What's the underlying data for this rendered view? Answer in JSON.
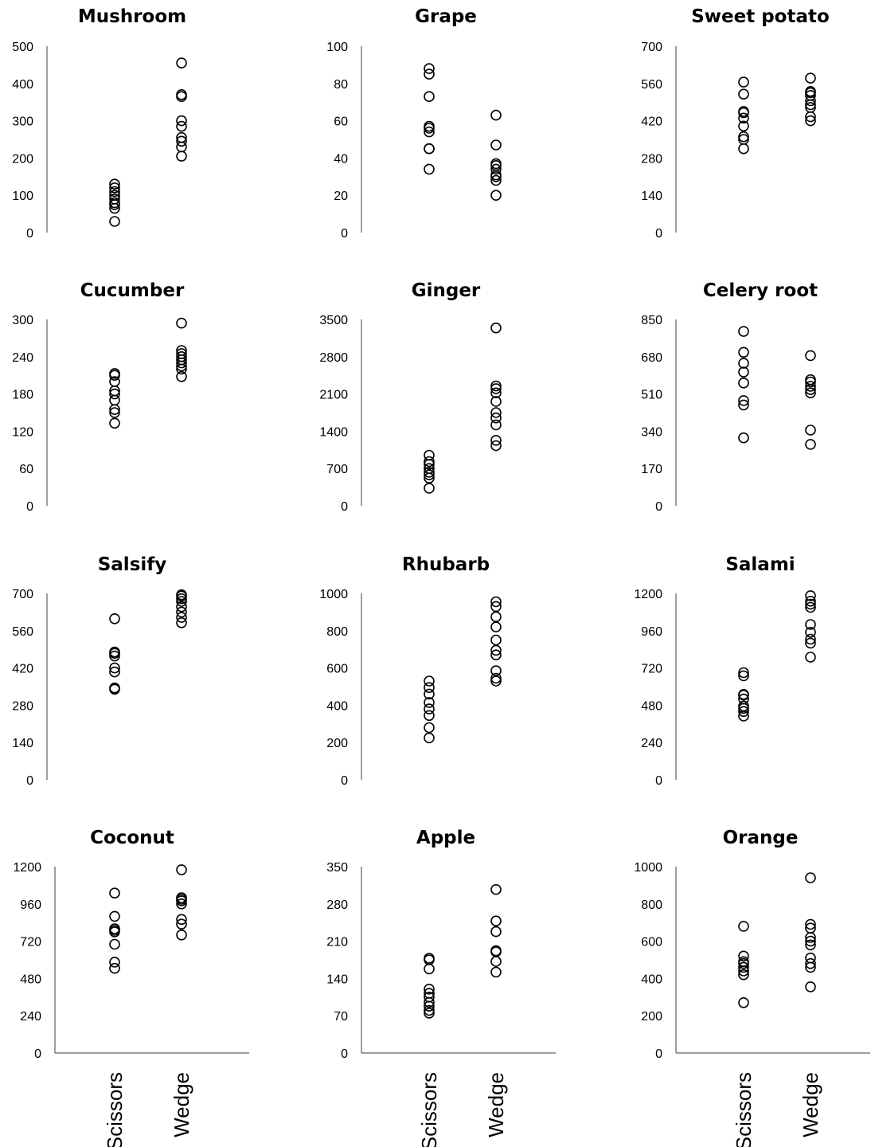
{
  "chart_data": [
    {
      "type": "scatter",
      "title": "Mushroom",
      "categories": [
        "Scissors",
        "Wedge"
      ],
      "yticks": [
        "0",
        "100",
        "200",
        "300",
        "400",
        "500"
      ],
      "ylim": [
        0,
        500
      ],
      "series": [
        {
          "category": "Scissors",
          "values": [
            30,
            65,
            75,
            80,
            90,
            100,
            110,
            120,
            130
          ]
        },
        {
          "category": "Wedge",
          "values": [
            205,
            230,
            245,
            255,
            285,
            300,
            365,
            370,
            455
          ]
        }
      ]
    },
    {
      "type": "scatter",
      "title": "Grape",
      "categories": [
        "Scissors",
        "Wedge"
      ],
      "yticks": [
        "0",
        "20",
        "40",
        "60",
        "80",
        "100"
      ],
      "ylim": [
        0,
        100
      ],
      "series": [
        {
          "category": "Scissors",
          "values": [
            34,
            45,
            45,
            54,
            56,
            57,
            73,
            85,
            88
          ]
        },
        {
          "category": "Wedge",
          "values": [
            20,
            28,
            30,
            31,
            34,
            36,
            37,
            47,
            63
          ]
        }
      ]
    },
    {
      "type": "scatter",
      "title": "Sweet potato",
      "categories": [
        "Scissors",
        "Wedge"
      ],
      "yticks": [
        "0",
        "140",
        "280",
        "420",
        "560",
        "700"
      ],
      "ylim": [
        0,
        700
      ],
      "series": [
        {
          "category": "Scissors",
          "values": [
            315,
            350,
            360,
            400,
            430,
            450,
            455,
            520,
            565
          ]
        },
        {
          "category": "Wedge",
          "values": [
            420,
            435,
            470,
            480,
            495,
            515,
            525,
            530,
            580
          ]
        }
      ]
    },
    {
      "type": "scatter",
      "title": "Cucumber",
      "categories": [
        "Scissors",
        "Wedge"
      ],
      "yticks": [
        "0",
        "60",
        "120",
        "180",
        "240",
        "300"
      ],
      "ylim": [
        0,
        300
      ],
      "series": [
        {
          "category": "Scissors",
          "values": [
            133,
            150,
            155,
            170,
            180,
            185,
            200,
            210,
            213
          ]
        },
        {
          "category": "Wedge",
          "values": [
            208,
            220,
            225,
            230,
            235,
            240,
            245,
            250,
            294
          ]
        }
      ]
    },
    {
      "type": "scatter",
      "title": "Ginger",
      "categories": [
        "Scissors",
        "Wedge"
      ],
      "yticks": [
        "0",
        "700",
        "1400",
        "2100",
        "2800",
        "3500"
      ],
      "ylim": [
        0,
        3500
      ],
      "series": [
        {
          "category": "Scissors",
          "values": [
            330,
            520,
            580,
            630,
            700,
            780,
            830,
            950
          ]
        },
        {
          "category": "Wedge",
          "values": [
            1130,
            1230,
            1520,
            1650,
            1750,
            1960,
            2120,
            2200,
            2250,
            3340
          ]
        }
      ]
    },
    {
      "type": "scatter",
      "title": "Celery root",
      "categories": [
        "Scissors",
        "Wedge"
      ],
      "yticks": [
        "0",
        "170",
        "340",
        "510",
        "680",
        "850"
      ],
      "ylim": [
        0,
        850
      ],
      "series": [
        {
          "category": "Scissors",
          "values": [
            310,
            460,
            480,
            560,
            610,
            650,
            700,
            795
          ]
        },
        {
          "category": "Wedge",
          "values": [
            280,
            345,
            515,
            530,
            545,
            565,
            575,
            685
          ]
        }
      ]
    },
    {
      "type": "scatter",
      "title": "Salsify",
      "categories": [
        "Scissors",
        "Wedge"
      ],
      "yticks": [
        "0",
        "140",
        "280",
        "420",
        "560",
        "700"
      ],
      "ylim": [
        0,
        700
      ],
      "series": [
        {
          "category": "Scissors",
          "values": [
            340,
            345,
            405,
            420,
            465,
            475,
            480,
            605
          ]
        },
        {
          "category": "Wedge",
          "values": [
            590,
            610,
            630,
            650,
            670,
            680,
            690,
            695
          ]
        }
      ]
    },
    {
      "type": "scatter",
      "title": "Rhubarb",
      "categories": [
        "Scissors",
        "Wedge"
      ],
      "yticks": [
        "0",
        "200",
        "400",
        "600",
        "800",
        "1000"
      ],
      "ylim": [
        0,
        1000
      ],
      "series": [
        {
          "category": "Scissors",
          "values": [
            225,
            280,
            345,
            380,
            415,
            460,
            495,
            530
          ]
        },
        {
          "category": "Wedge",
          "values": [
            530,
            545,
            585,
            670,
            695,
            750,
            820,
            875,
            930,
            955
          ]
        }
      ]
    },
    {
      "type": "scatter",
      "title": "Salami",
      "categories": [
        "Scissors",
        "Wedge"
      ],
      "yticks": [
        "0",
        "240",
        "480",
        "720",
        "960",
        "1200"
      ],
      "ylim": [
        0,
        1200
      ],
      "series": [
        {
          "category": "Scissors",
          "values": [
            410,
            440,
            460,
            475,
            520,
            545,
            550,
            670,
            690
          ]
        },
        {
          "category": "Wedge",
          "values": [
            790,
            880,
            905,
            950,
            1000,
            1110,
            1130,
            1150,
            1185
          ]
        }
      ]
    },
    {
      "type": "scatter",
      "title": "Coconut",
      "categories": [
        "Scissors",
        "Wedge"
      ],
      "yticks": [
        "0",
        "240",
        "480",
        "720",
        "960",
        "1200"
      ],
      "ylim": [
        0,
        1200
      ],
      "series": [
        {
          "category": "Scissors",
          "values": [
            545,
            585,
            700,
            780,
            790,
            800,
            880,
            1030
          ]
        },
        {
          "category": "Wedge",
          "values": [
            760,
            830,
            860,
            960,
            980,
            990,
            1000,
            1180
          ]
        }
      ]
    },
    {
      "type": "scatter",
      "title": "Apple",
      "categories": [
        "Scissors",
        "Wedge"
      ],
      "yticks": [
        "0",
        "70",
        "140",
        "210",
        "280",
        "350"
      ],
      "ylim": [
        0,
        350
      ],
      "series": [
        {
          "category": "Scissors",
          "values": [
            75,
            80,
            88,
            95,
            105,
            112,
            120,
            158,
            175,
            178
          ]
        },
        {
          "category": "Wedge",
          "values": [
            152,
            172,
            190,
            192,
            228,
            248,
            307
          ]
        }
      ]
    },
    {
      "type": "scatter",
      "title": "Orange",
      "categories": [
        "Scissors",
        "Wedge"
      ],
      "yticks": [
        "0",
        "200",
        "400",
        "600",
        "800",
        "1000"
      ],
      "ylim": [
        0,
        1000
      ],
      "series": [
        {
          "category": "Scissors",
          "values": [
            270,
            420,
            440,
            460,
            480,
            490,
            520,
            680
          ]
        },
        {
          "category": "Wedge",
          "values": [
            355,
            460,
            480,
            510,
            580,
            600,
            620,
            670,
            690,
            940
          ]
        }
      ]
    }
  ]
}
